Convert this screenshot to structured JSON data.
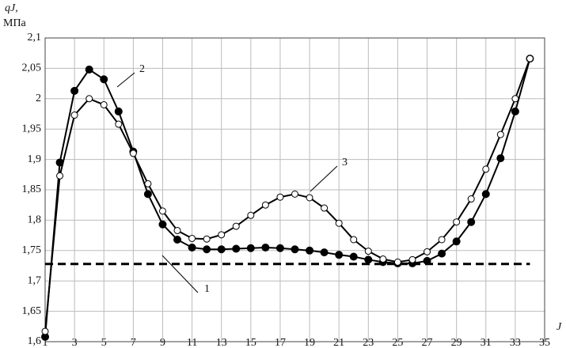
{
  "chart_data": {
    "type": "line",
    "y_label": "qJ,",
    "y_unit": "МПа",
    "x_label": "J",
    "xlim": [
      1,
      35
    ],
    "xticks": [
      1,
      3,
      5,
      7,
      9,
      11,
      13,
      15,
      17,
      19,
      21,
      23,
      25,
      27,
      29,
      31,
      33,
      35
    ],
    "ylim": [
      1.6,
      2.1
    ],
    "yticks": [
      {
        "value": 1.6,
        "label": "1,6"
      },
      {
        "value": 1.65,
        "label": "1,65"
      },
      {
        "value": 1.7,
        "label": "1,7"
      },
      {
        "value": 1.75,
        "label": "1,75"
      },
      {
        "value": 1.8,
        "label": "1,8"
      },
      {
        "value": 1.85,
        "label": "1,85"
      },
      {
        "value": 1.9,
        "label": "1,9"
      },
      {
        "value": 1.95,
        "label": "1,95"
      },
      2,
      {
        "value": 2.05,
        "label": "2,05"
      },
      {
        "value": 2.1,
        "label": "2,1"
      }
    ],
    "grid": true,
    "x": [
      1,
      2,
      3,
      4,
      5,
      6,
      7,
      8,
      9,
      10,
      11,
      12,
      13,
      14,
      15,
      16,
      17,
      18,
      19,
      20,
      21,
      22,
      23,
      24,
      25,
      26,
      27,
      28,
      29,
      30,
      31,
      32,
      33,
      34
    ],
    "series": [
      {
        "name": "1",
        "color": "#000000",
        "style": "dashed",
        "x": [
          1,
          34
        ],
        "values": [
          1.728,
          1.728
        ]
      },
      {
        "name": "2",
        "color": "#000000",
        "marker": "filled",
        "values": [
          1.608,
          1.895,
          2.013,
          2.048,
          2.032,
          1.979,
          1.913,
          1.843,
          1.793,
          1.768,
          1.755,
          1.752,
          1.752,
          1.753,
          1.754,
          1.755,
          1.754,
          1.752,
          1.75,
          1.747,
          1.743,
          1.74,
          1.735,
          1.731,
          1.729,
          1.729,
          1.733,
          1.745,
          1.765,
          1.797,
          1.843,
          1.902,
          1.979,
          2.066
        ]
      },
      {
        "name": "3",
        "color": "#000000",
        "marker": "open",
        "values": [
          1.617,
          1.873,
          1.973,
          2.0,
          1.99,
          1.958,
          1.91,
          1.86,
          1.815,
          1.783,
          1.77,
          1.769,
          1.776,
          1.79,
          1.808,
          1.825,
          1.838,
          1.843,
          1.837,
          1.82,
          1.795,
          1.768,
          1.749,
          1.736,
          1.731,
          1.735,
          1.748,
          1.768,
          1.797,
          1.835,
          1.884,
          1.941,
          2.0,
          2.066
        ]
      }
    ]
  }
}
